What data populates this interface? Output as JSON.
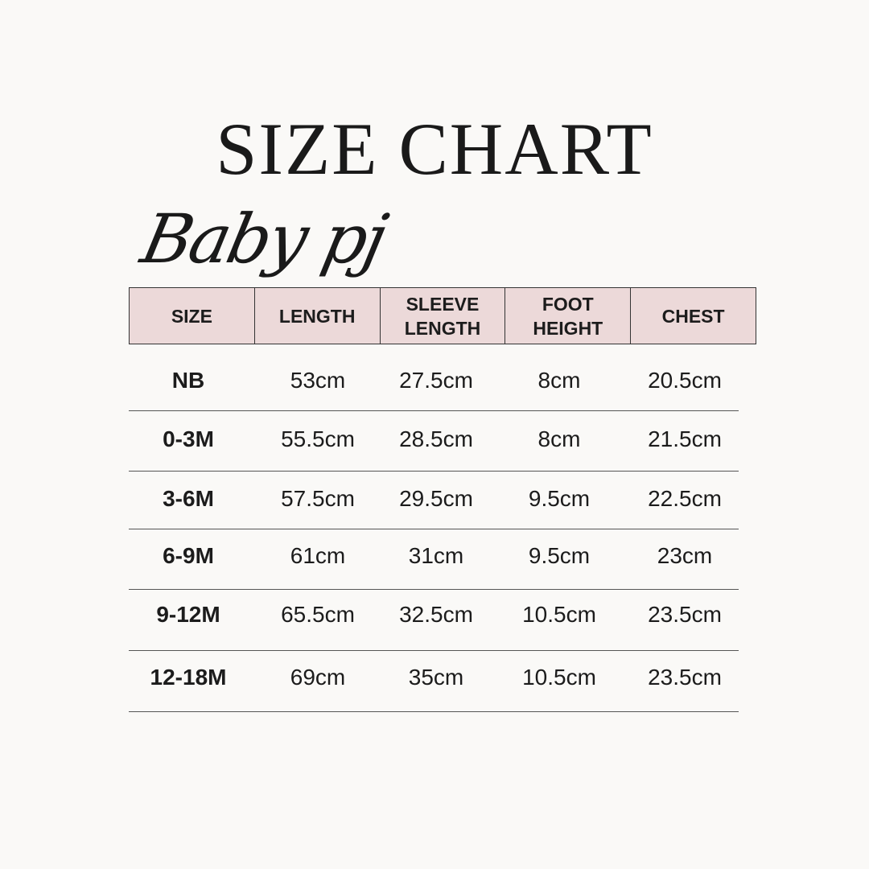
{
  "title": "SIZE CHART",
  "subtitle": "Baby pj",
  "colors": {
    "header_fill": "#ecd9d9",
    "background": "#faf9f7"
  },
  "table": {
    "headers": [
      "SIZE",
      "LENGTH",
      "SLEEVE\nLENGTH",
      "FOOT\nHEIGHT",
      "CHEST"
    ],
    "rows": [
      [
        "NB",
        "53cm",
        "27.5cm",
        "8cm",
        "20.5cm"
      ],
      [
        "0-3M",
        "55.5cm",
        "28.5cm",
        "8cm",
        "21.5cm"
      ],
      [
        "3-6M",
        "57.5cm",
        "29.5cm",
        "9.5cm",
        "22.5cm"
      ],
      [
        "6-9M",
        "61cm",
        "31cm",
        "9.5cm",
        "23cm"
      ],
      [
        "9-12M",
        "65.5cm",
        "32.5cm",
        "10.5cm",
        "23.5cm"
      ],
      [
        "12-18M",
        "69cm",
        "35cm",
        "10.5cm",
        "23.5cm"
      ]
    ]
  }
}
